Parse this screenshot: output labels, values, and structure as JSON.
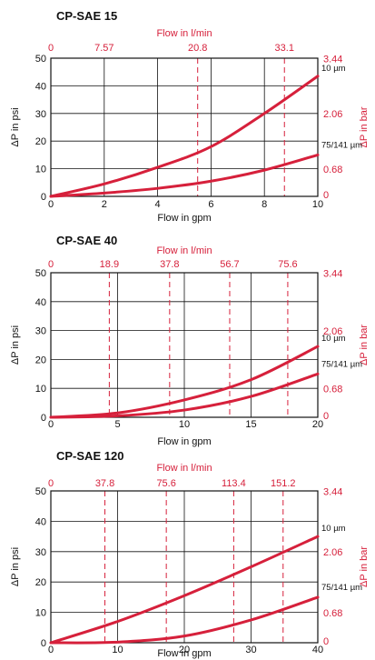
{
  "colors": {
    "accent": "#d6203b",
    "grid": "#111111",
    "frame": "#111111"
  },
  "chart_data": [
    {
      "type": "line",
      "title": "CP-SAE 15",
      "xlabel": "Flow in gpm",
      "ylabel": "ΔP in psi",
      "top_xlabel": "Flow in l/min",
      "right_ylabel": "ΔP in bar",
      "xlim": [
        0,
        10
      ],
      "ylim": [
        0,
        50
      ],
      "x_ticks": [
        "0",
        "2",
        "4",
        "6",
        "8",
        "10"
      ],
      "y_ticks": [
        "0",
        "10",
        "20",
        "30",
        "40",
        "50"
      ],
      "top_ticks": [
        {
          "label": "0",
          "x": 0
        },
        {
          "label": "7.57",
          "x": 2
        },
        {
          "label": "20.8",
          "x": 5.5
        },
        {
          "label": "33.1",
          "x": 8.75
        }
      ],
      "right_ticks": [
        {
          "label": "0",
          "y": 0
        },
        {
          "label": "0.68",
          "y": 9.86
        },
        {
          "label": "2.06",
          "y": 29.9
        },
        {
          "label": "3.44",
          "y": 49.9
        }
      ],
      "vgrid": [
        2,
        4,
        5.5,
        6,
        8,
        8.75,
        10
      ],
      "dashed": [
        5.5,
        8.75
      ],
      "series": [
        {
          "name": "10 µm",
          "x": [
            0,
            2,
            4,
            6,
            8,
            10
          ],
          "y": [
            0,
            4.5,
            10.5,
            18,
            30,
            43.5
          ]
        },
        {
          "name": "75/141 µm",
          "x": [
            0,
            2,
            4,
            6,
            8,
            10
          ],
          "y": [
            0,
            1.2,
            2.9,
            5.5,
            9.5,
            15
          ]
        }
      ]
    },
    {
      "type": "line",
      "title": "CP-SAE 40",
      "xlabel": "Flow in gpm",
      "ylabel": "ΔP in psi",
      "top_xlabel": "Flow in l/min",
      "right_ylabel": "ΔP in bar",
      "xlim": [
        0,
        20
      ],
      "ylim": [
        0,
        50
      ],
      "x_ticks": [
        "0",
        "5",
        "10",
        "15",
        "20"
      ],
      "y_ticks": [
        "0",
        "10",
        "20",
        "30",
        "40",
        "50"
      ],
      "top_ticks": [
        {
          "label": "0",
          "x": 0
        },
        {
          "label": "18.9",
          "x": 4.38
        },
        {
          "label": "37.8",
          "x": 8.9
        },
        {
          "label": "56.7",
          "x": 13.4
        },
        {
          "label": "75.6",
          "x": 17.75
        }
      ],
      "right_ticks": [
        {
          "label": "0",
          "y": 0
        },
        {
          "label": "0.68",
          "y": 9.86
        },
        {
          "label": "2.06",
          "y": 29.9
        },
        {
          "label": "3.44",
          "y": 49.9
        }
      ],
      "vgrid": [
        4.38,
        5,
        8.9,
        10,
        13.4,
        15,
        17.75,
        20
      ],
      "dashed": [
        4.38,
        8.9,
        13.4,
        17.75
      ],
      "series": [
        {
          "name": "10 µm",
          "x": [
            0,
            5,
            10,
            15,
            20
          ],
          "y": [
            0,
            1.5,
            6,
            13,
            24.5
          ]
        },
        {
          "name": "75/141 µm",
          "x": [
            0,
            5,
            10,
            15,
            20
          ],
          "y": [
            0,
            0.5,
            2.5,
            7.2,
            15
          ]
        }
      ]
    },
    {
      "type": "line",
      "title": "CP-SAE 120",
      "xlabel": "Flow in gpm",
      "ylabel": "ΔP in psi",
      "top_xlabel": "Flow in l/min",
      "right_ylabel": "ΔP in bar",
      "xlim": [
        0,
        40
      ],
      "ylim": [
        0,
        50
      ],
      "x_ticks": [
        "0",
        "10",
        "20",
        "30",
        "40"
      ],
      "y_ticks": [
        "0",
        "10",
        "20",
        "30",
        "40",
        "50"
      ],
      "top_ticks": [
        {
          "label": "0",
          "x": 0
        },
        {
          "label": "37.8",
          "x": 8.1
        },
        {
          "label": "75.6",
          "x": 17.3
        },
        {
          "label": "113.4",
          "x": 27.4
        },
        {
          "label": "151.2",
          "x": 34.8
        }
      ],
      "right_ticks": [
        {
          "label": "0",
          "y": 0
        },
        {
          "label": "0.68",
          "y": 9.86
        },
        {
          "label": "2.06",
          "y": 29.9
        },
        {
          "label": "3.44",
          "y": 49.9
        }
      ],
      "vgrid": [
        8.1,
        10,
        17.3,
        20,
        27.4,
        30,
        34.8,
        40
      ],
      "dashed": [
        8.1,
        17.3,
        27.4,
        34.8
      ],
      "series": [
        {
          "name": "10 µm",
          "x": [
            0,
            10,
            20,
            30,
            40
          ],
          "y": [
            0,
            7,
            15.5,
            25,
            35
          ]
        },
        {
          "name": "75/141 µm",
          "x": [
            0,
            10,
            20,
            30,
            40
          ],
          "y": [
            0,
            0.2,
            2.2,
            7.5,
            15
          ]
        }
      ]
    }
  ]
}
